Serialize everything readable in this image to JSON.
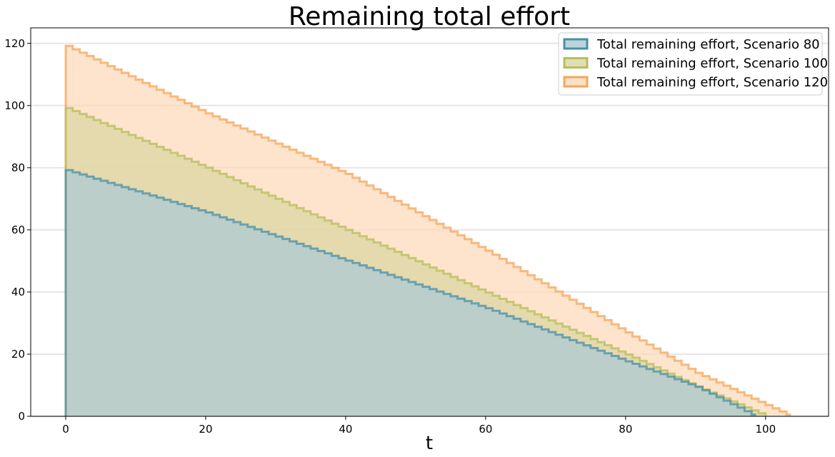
{
  "chart_data": {
    "type": "area",
    "title": "Remaining total effort",
    "xlabel": "t",
    "ylabel": "",
    "xlim": [
      -5,
      109
    ],
    "ylim": [
      0,
      125
    ],
    "xticks": [
      0,
      20,
      40,
      60,
      80,
      100
    ],
    "yticks": [
      0,
      20,
      40,
      60,
      80,
      100,
      120
    ],
    "grid": "horizontal",
    "legend_position": "top-right",
    "series": [
      {
        "name": "Total remaining effort, Scenario 80",
        "line_color": "#4a8fa8",
        "fill_color": "#a9c9d4",
        "start_value": 79.2,
        "end_t": 98.5,
        "curve": [
          [
            0,
            79.2
          ],
          [
            20,
            65.6
          ],
          [
            40,
            50.1
          ],
          [
            60,
            34.8
          ],
          [
            80,
            17.7
          ],
          [
            90,
            9.5
          ],
          [
            98.5,
            0
          ]
        ]
      },
      {
        "name": "Total remaining effort, Scenario 100",
        "line_color": "#b8bd5c",
        "fill_color": "#d8d6a0",
        "start_value": 99.2,
        "end_t": 100,
        "curve": [
          [
            0,
            99.2
          ],
          [
            20,
            80.0
          ],
          [
            40,
            60.0
          ],
          [
            60,
            39.8
          ],
          [
            80,
            19.9
          ],
          [
            90,
            9.6
          ],
          [
            100,
            0
          ]
        ]
      },
      {
        "name": "Total remaining effort, Scenario 120",
        "line_color": "#f5a55a",
        "fill_color": "#fdd9b8",
        "start_value": 119.2,
        "end_t": 103.5,
        "curve": [
          [
            0,
            119.2
          ],
          [
            20,
            97.5
          ],
          [
            40,
            78.0
          ],
          [
            60,
            53.3
          ],
          [
            80,
            27.0
          ],
          [
            90,
            14.0
          ],
          [
            103.5,
            0
          ]
        ]
      }
    ]
  }
}
